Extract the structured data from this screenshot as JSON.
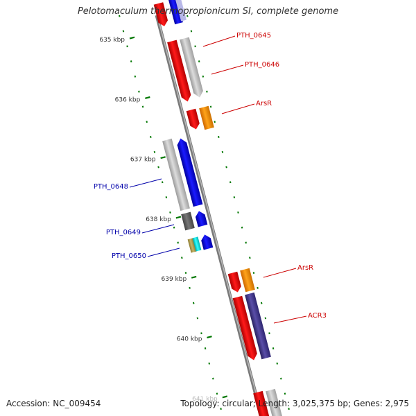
{
  "title": "Pelotomaculum thermopropionicum SI, complete genome",
  "footer": {
    "accession": "Accession: NC_009454",
    "summary": "Topology: circular; Length: 3,025,375 bp; Genes: 2,975"
  },
  "ticks": [
    {
      "label": "635 kbp",
      "kbp": 635
    },
    {
      "label": "636 kbp",
      "kbp": 636
    },
    {
      "label": "637 kbp",
      "kbp": 637
    },
    {
      "label": "638 kbp",
      "kbp": 638
    },
    {
      "label": "639 kbp",
      "kbp": 639
    },
    {
      "label": "640 kbp",
      "kbp": 640
    },
    {
      "label": "641 kbp",
      "kbp": 641
    }
  ],
  "gene_labels": [
    {
      "name": "PTH_0645",
      "strand": "reverse"
    },
    {
      "name": "PTH_0646",
      "strand": "reverse"
    },
    {
      "name": "ArsR",
      "strand": "reverse"
    },
    {
      "name": "PTH_0648",
      "strand": "forward"
    },
    {
      "name": "PTH_0649",
      "strand": "forward"
    },
    {
      "name": "PTH_0650",
      "strand": "forward"
    },
    {
      "name": "ArsR",
      "strand": "reverse"
    },
    {
      "name": "ACR3",
      "strand": "reverse"
    }
  ],
  "colors": {
    "forward_label": "#0000aa",
    "reverse_label": "#cc0000",
    "backbone": "#8a8a8a",
    "tick": "#007700"
  }
}
